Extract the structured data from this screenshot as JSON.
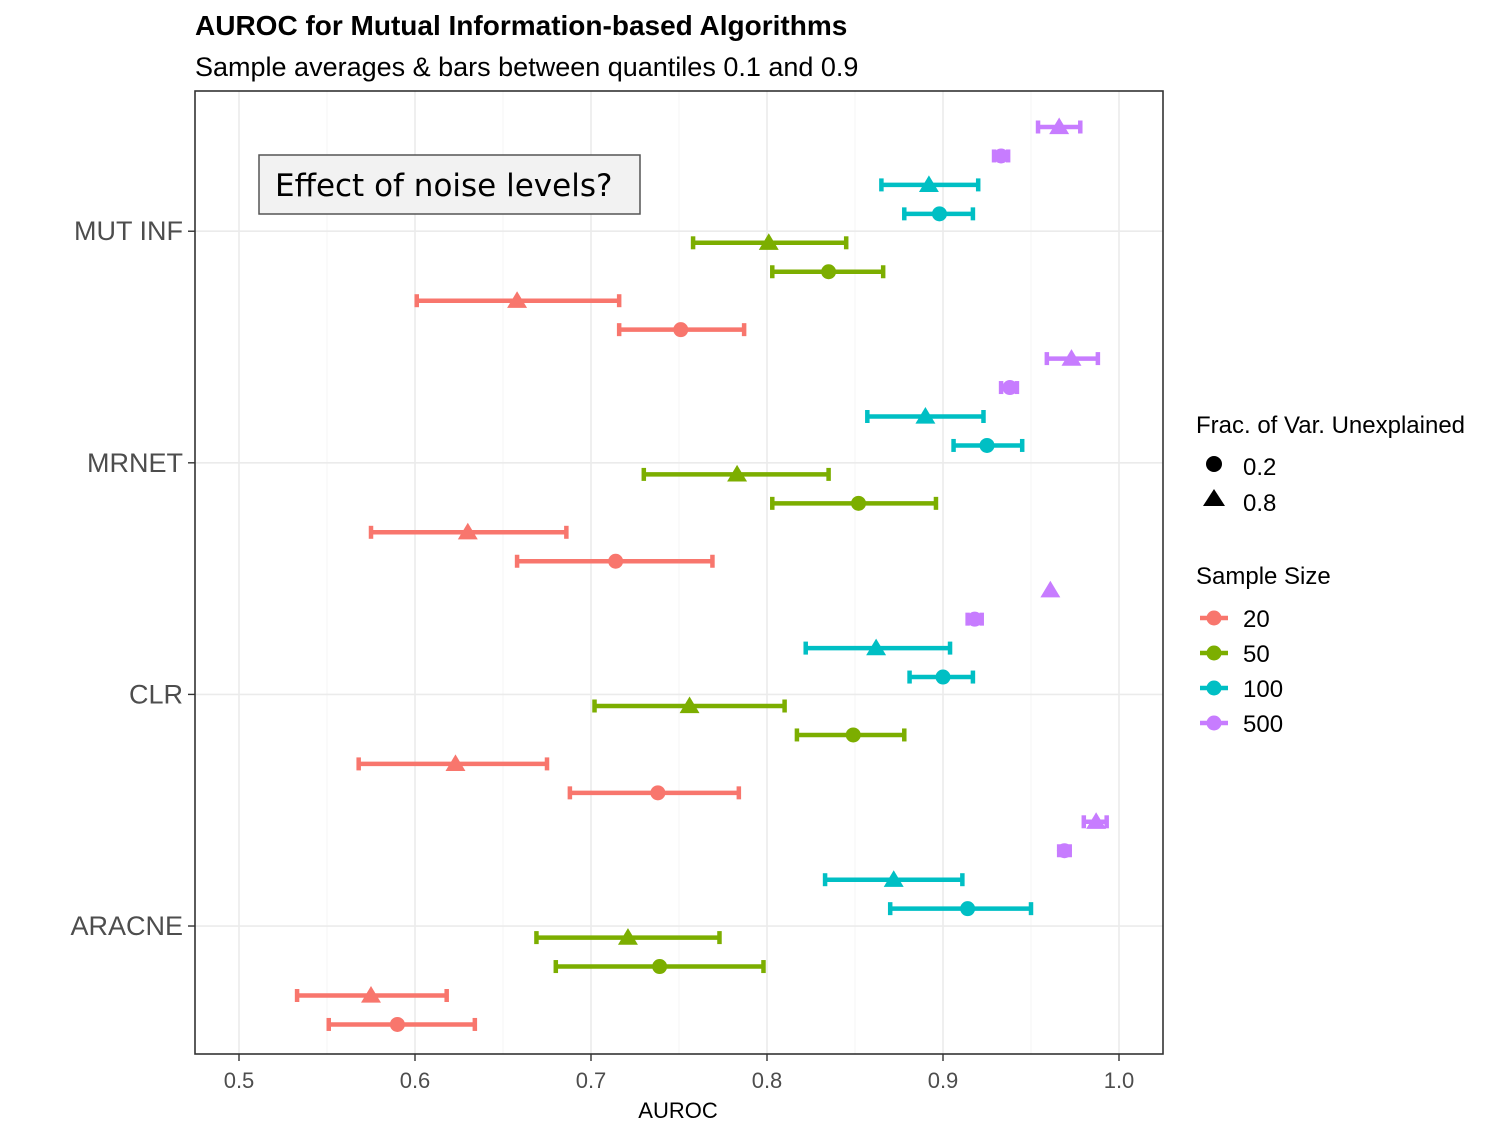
{
  "chart_data": {
    "type": "scatter",
    "title": "AUROC for Mutual Information-based Algorithms",
    "subtitle": "Sample averages & bars between quantiles 0.1 and 0.9",
    "xlabel": "AUROC",
    "ylabel": "",
    "xlim": [
      0.475,
      1.025
    ],
    "x_ticks": [
      "0.5",
      "0.6",
      "0.7",
      "0.8",
      "0.9",
      "1.0"
    ],
    "categories": [
      "MUT INF",
      "MRNET",
      "CLR",
      "ARACNE"
    ],
    "grid": true,
    "annotation": "Effect of noise levels?",
    "legend_position": "right",
    "shape_legend": {
      "title": "Frac. of Var. Unexplained",
      "entries": [
        {
          "label": "0.2",
          "shape": "circle"
        },
        {
          "label": "0.8",
          "shape": "triangle"
        }
      ]
    },
    "color_legend": {
      "title": "Sample Size",
      "entries": [
        {
          "label": "20",
          "color": "#F8766D"
        },
        {
          "label": "50",
          "color": "#7CAE00"
        },
        {
          "label": "100",
          "color": "#00BFC4"
        },
        {
          "label": "500",
          "color": "#C77CFF"
        }
      ]
    },
    "points": [
      {
        "algorithm": "MUT INF",
        "sample_size": "500",
        "fvu": "0.8",
        "mean": 0.966,
        "low": 0.954,
        "high": 0.978
      },
      {
        "algorithm": "MUT INF",
        "sample_size": "500",
        "fvu": "0.2",
        "mean": 0.933,
        "low": 0.929,
        "high": 0.937
      },
      {
        "algorithm": "MUT INF",
        "sample_size": "100",
        "fvu": "0.8",
        "mean": 0.892,
        "low": 0.865,
        "high": 0.92
      },
      {
        "algorithm": "MUT INF",
        "sample_size": "100",
        "fvu": "0.2",
        "mean": 0.898,
        "low": 0.878,
        "high": 0.917
      },
      {
        "algorithm": "MUT INF",
        "sample_size": "50",
        "fvu": "0.8",
        "mean": 0.801,
        "low": 0.758,
        "high": 0.845
      },
      {
        "algorithm": "MUT INF",
        "sample_size": "50",
        "fvu": "0.2",
        "mean": 0.835,
        "low": 0.803,
        "high": 0.866
      },
      {
        "algorithm": "MUT INF",
        "sample_size": "20",
        "fvu": "0.8",
        "mean": 0.658,
        "low": 0.601,
        "high": 0.716
      },
      {
        "algorithm": "MUT INF",
        "sample_size": "20",
        "fvu": "0.2",
        "mean": 0.751,
        "low": 0.716,
        "high": 0.787
      },
      {
        "algorithm": "MRNET",
        "sample_size": "500",
        "fvu": "0.8",
        "mean": 0.973,
        "low": 0.959,
        "high": 0.988
      },
      {
        "algorithm": "MRNET",
        "sample_size": "500",
        "fvu": "0.2",
        "mean": 0.938,
        "low": 0.933,
        "high": 0.942
      },
      {
        "algorithm": "MRNET",
        "sample_size": "100",
        "fvu": "0.8",
        "mean": 0.89,
        "low": 0.857,
        "high": 0.923
      },
      {
        "algorithm": "MRNET",
        "sample_size": "100",
        "fvu": "0.2",
        "mean": 0.925,
        "low": 0.906,
        "high": 0.945
      },
      {
        "algorithm": "MRNET",
        "sample_size": "50",
        "fvu": "0.8",
        "mean": 0.783,
        "low": 0.73,
        "high": 0.835
      },
      {
        "algorithm": "MRNET",
        "sample_size": "50",
        "fvu": "0.2",
        "mean": 0.852,
        "low": 0.803,
        "high": 0.896
      },
      {
        "algorithm": "MRNET",
        "sample_size": "20",
        "fvu": "0.8",
        "mean": 0.63,
        "low": 0.575,
        "high": 0.686
      },
      {
        "algorithm": "MRNET",
        "sample_size": "20",
        "fvu": "0.2",
        "mean": 0.714,
        "low": 0.658,
        "high": 0.769
      },
      {
        "algorithm": "CLR",
        "sample_size": "500",
        "fvu": "0.8",
        "mean": 0.961,
        "low": 0.961,
        "high": 0.961
      },
      {
        "algorithm": "CLR",
        "sample_size": "500",
        "fvu": "0.2",
        "mean": 0.918,
        "low": 0.914,
        "high": 0.922
      },
      {
        "algorithm": "CLR",
        "sample_size": "100",
        "fvu": "0.8",
        "mean": 0.862,
        "low": 0.822,
        "high": 0.904
      },
      {
        "algorithm": "CLR",
        "sample_size": "100",
        "fvu": "0.2",
        "mean": 0.9,
        "low": 0.881,
        "high": 0.917
      },
      {
        "algorithm": "CLR",
        "sample_size": "50",
        "fvu": "0.8",
        "mean": 0.756,
        "low": 0.702,
        "high": 0.81
      },
      {
        "algorithm": "CLR",
        "sample_size": "50",
        "fvu": "0.2",
        "mean": 0.849,
        "low": 0.817,
        "high": 0.878
      },
      {
        "algorithm": "CLR",
        "sample_size": "20",
        "fvu": "0.8",
        "mean": 0.623,
        "low": 0.568,
        "high": 0.675
      },
      {
        "algorithm": "CLR",
        "sample_size": "20",
        "fvu": "0.2",
        "mean": 0.738,
        "low": 0.688,
        "high": 0.784
      },
      {
        "algorithm": "ARACNE",
        "sample_size": "500",
        "fvu": "0.8",
        "mean": 0.987,
        "low": 0.98,
        "high": 0.993
      },
      {
        "algorithm": "ARACNE",
        "sample_size": "500",
        "fvu": "0.2",
        "mean": 0.969,
        "low": 0.966,
        "high": 0.972
      },
      {
        "algorithm": "ARACNE",
        "sample_size": "100",
        "fvu": "0.8",
        "mean": 0.872,
        "low": 0.833,
        "high": 0.911
      },
      {
        "algorithm": "ARACNE",
        "sample_size": "100",
        "fvu": "0.2",
        "mean": 0.914,
        "low": 0.87,
        "high": 0.95
      },
      {
        "algorithm": "ARACNE",
        "sample_size": "50",
        "fvu": "0.8",
        "mean": 0.721,
        "low": 0.669,
        "high": 0.773
      },
      {
        "algorithm": "ARACNE",
        "sample_size": "50",
        "fvu": "0.2",
        "mean": 0.739,
        "low": 0.68,
        "high": 0.798
      },
      {
        "algorithm": "ARACNE",
        "sample_size": "20",
        "fvu": "0.8",
        "mean": 0.575,
        "low": 0.533,
        "high": 0.618
      },
      {
        "algorithm": "ARACNE",
        "sample_size": "20",
        "fvu": "0.2",
        "mean": 0.59,
        "low": 0.551,
        "high": 0.634
      }
    ]
  }
}
